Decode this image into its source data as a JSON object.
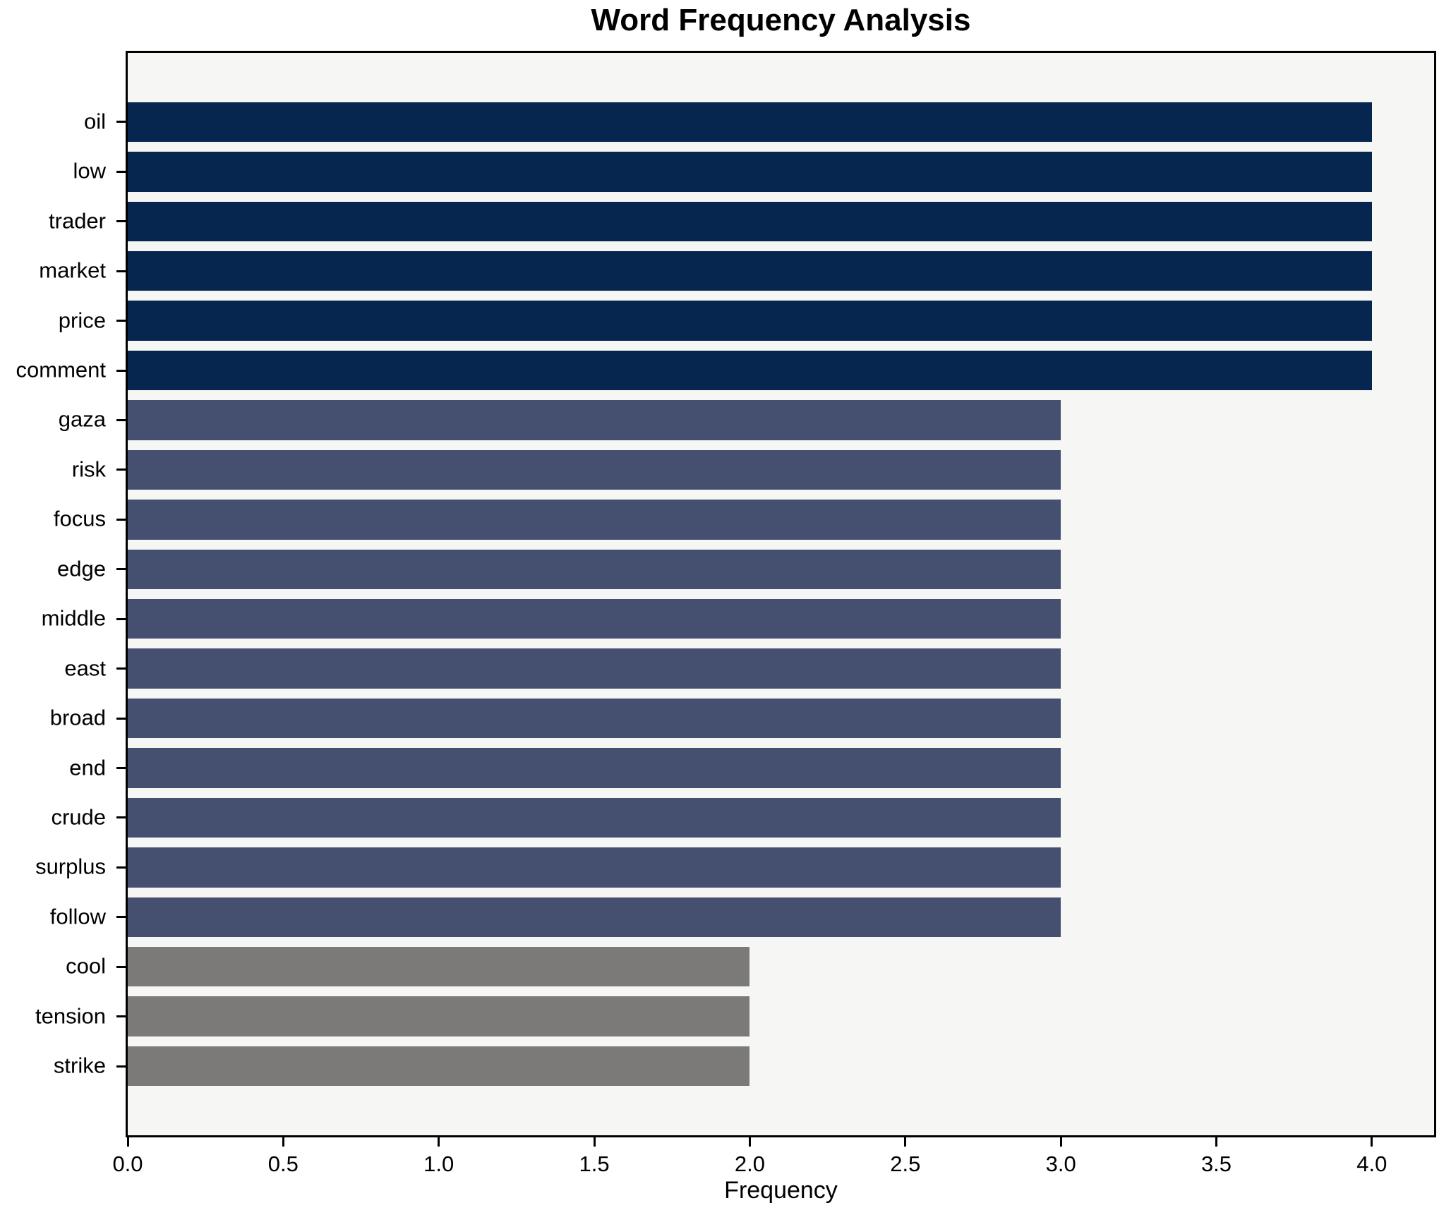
{
  "title": "Word Frequency Analysis",
  "chart_data": {
    "type": "bar",
    "orientation": "horizontal",
    "title": "Word Frequency Analysis",
    "xlabel": "Frequency",
    "ylabel": "",
    "categories": [
      "oil",
      "low",
      "trader",
      "market",
      "price",
      "comment",
      "gaza",
      "risk",
      "focus",
      "edge",
      "middle",
      "east",
      "broad",
      "end",
      "crude",
      "surplus",
      "follow",
      "cool",
      "tension",
      "strike"
    ],
    "values": [
      4,
      4,
      4,
      4,
      4,
      4,
      3,
      3,
      3,
      3,
      3,
      3,
      3,
      3,
      3,
      3,
      3,
      2,
      2,
      2
    ],
    "bar_colors": [
      "#062650",
      "#062650",
      "#062650",
      "#062650",
      "#062650",
      "#062650",
      "#455070",
      "#455070",
      "#455070",
      "#455070",
      "#455070",
      "#455070",
      "#455070",
      "#455070",
      "#455070",
      "#455070",
      "#455070",
      "#7c7a78",
      "#7c7a78",
      "#7c7a78"
    ],
    "xlim": [
      0,
      4.2
    ],
    "x_ticks": [
      0,
      0.5,
      1,
      1.5,
      2,
      2.5,
      3,
      3.5,
      4
    ],
    "x_tick_labels": [
      "0.0",
      "0.5",
      "1.0",
      "1.5",
      "2.0",
      "2.5",
      "3.0",
      "3.5",
      "4.0"
    ],
    "grid": false,
    "legend_position": "none",
    "colors": {
      "freq_4": "#062650",
      "freq_3": "#455070",
      "freq_2": "#7c7a78",
      "plot_background": "#f6f6f5",
      "figure_background": "#ffffff",
      "axis": "#000000",
      "text": "#000000"
    }
  }
}
